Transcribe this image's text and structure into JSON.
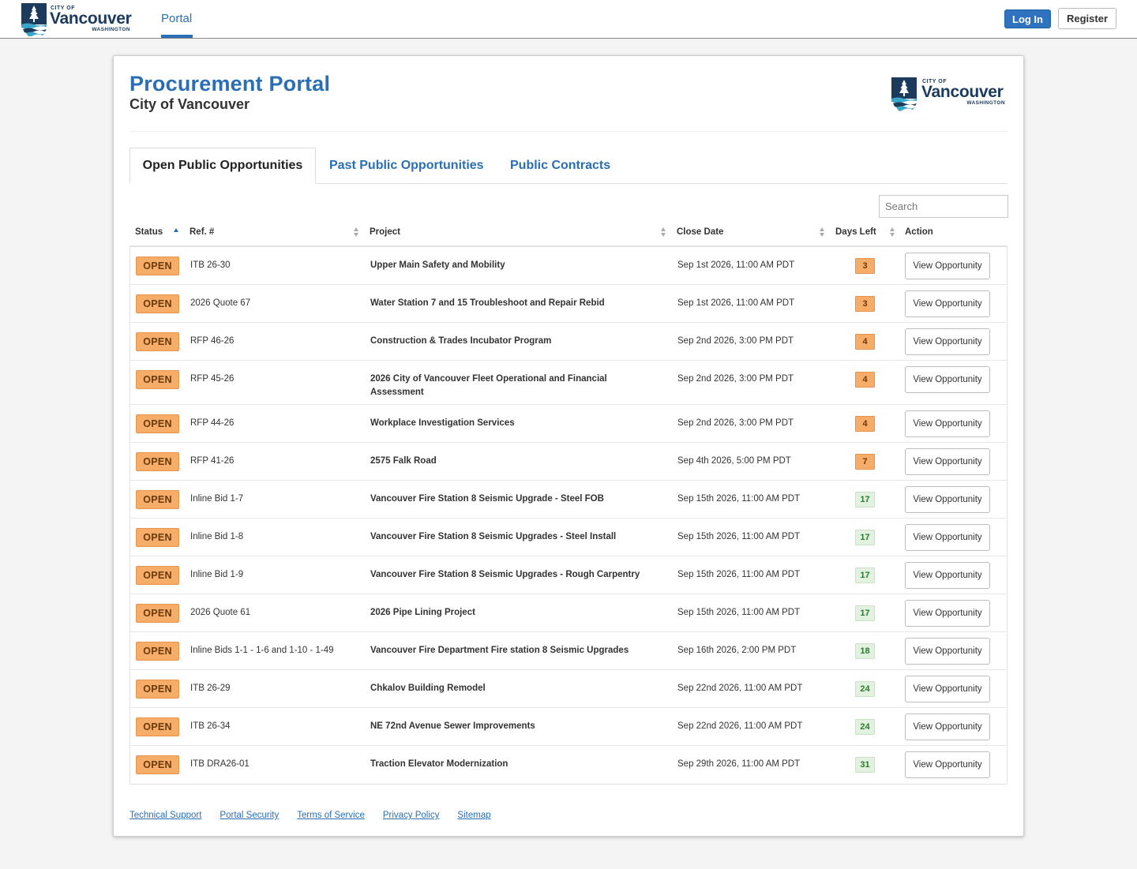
{
  "topbar": {
    "brand": {
      "city_of": "CITY OF",
      "name": "Vancouver",
      "state": "WASHINGTON"
    },
    "nav_portal": "Portal",
    "login_label": "Log In",
    "register_label": "Register"
  },
  "header": {
    "title": "Procurement Portal",
    "subtitle": "City of Vancouver",
    "logo": {
      "city_of": "CITY OF",
      "name": "Vancouver",
      "state": "WASHINGTON"
    }
  },
  "tabs": [
    {
      "label": "Open Public Opportunities",
      "active": true
    },
    {
      "label": "Past Public Opportunities",
      "active": false
    },
    {
      "label": "Public Contracts",
      "active": false
    }
  ],
  "search": {
    "placeholder": "Search"
  },
  "table": {
    "columns": {
      "status": "Status",
      "ref": "Ref. #",
      "project": "Project",
      "close": "Close Date",
      "days": "Days Left",
      "action": "Action"
    },
    "rows": [
      {
        "status": "OPEN",
        "ref": "ITB 26-30",
        "project": "Upper Main Safety and Mobility",
        "close": "Sep 1st 2026, 11:00 AM PDT",
        "days": "3",
        "days_level": "warn",
        "action": "View Opportunity"
      },
      {
        "status": "OPEN",
        "ref": "2026 Quote 67",
        "project": "Water Station 7 and 15 Troubleshoot and Repair Rebid",
        "close": "Sep 1st 2026, 11:00 AM PDT",
        "days": "3",
        "days_level": "warn",
        "action": "View Opportunity"
      },
      {
        "status": "OPEN",
        "ref": "RFP 46-26",
        "project": "Construction & Trades Incubator Program",
        "close": "Sep 2nd 2026, 3:00 PM PDT",
        "days": "4",
        "days_level": "warn",
        "action": "View Opportunity"
      },
      {
        "status": "OPEN",
        "ref": "RFP 45-26",
        "project": "2026 City of Vancouver Fleet Operational and Financial Assessment",
        "close": "Sep 2nd 2026, 3:00 PM PDT",
        "days": "4",
        "days_level": "warn",
        "action": "View Opportunity"
      },
      {
        "status": "OPEN",
        "ref": "RFP 44-26",
        "project": "Workplace Investigation Services",
        "close": "Sep 2nd 2026, 3:00 PM PDT",
        "days": "4",
        "days_level": "warn",
        "action": "View Opportunity"
      },
      {
        "status": "OPEN",
        "ref": "RFP 41-26",
        "project": "2575 Falk Road",
        "close": "Sep 4th 2026, 5:00 PM PDT",
        "days": "7",
        "days_level": "warn",
        "action": "View Opportunity"
      },
      {
        "status": "OPEN",
        "ref": "Inline Bid 1-7",
        "project": "Vancouver Fire Station 8 Seismic Upgrade - Steel FOB",
        "close": "Sep 15th 2026, 11:00 AM PDT",
        "days": "17",
        "days_level": "ok",
        "action": "View Opportunity"
      },
      {
        "status": "OPEN",
        "ref": "Inline Bid 1-8",
        "project": "Vancouver Fire Station 8 Seismic Upgrades - Steel Install",
        "close": "Sep 15th 2026, 11:00 AM PDT",
        "days": "17",
        "days_level": "ok",
        "action": "View Opportunity"
      },
      {
        "status": "OPEN",
        "ref": "Inline Bid 1-9",
        "project": "Vancouver Fire Station 8 Seismic Upgrades - Rough Carpentry",
        "close": "Sep 15th 2026, 11:00 AM PDT",
        "days": "17",
        "days_level": "ok",
        "action": "View Opportunity"
      },
      {
        "status": "OPEN",
        "ref": "2026 Quote 61",
        "project": "2026 Pipe Lining Project",
        "close": "Sep 15th 2026, 11:00 AM PDT",
        "days": "17",
        "days_level": "ok",
        "action": "View Opportunity"
      },
      {
        "status": "OPEN",
        "ref": "Inline Bids 1-1 - 1-6 and 1-10 - 1-49",
        "project": "Vancouver Fire Department Fire station 8 Seismic Upgrades",
        "close": "Sep 16th 2026, 2:00 PM PDT",
        "days": "18",
        "days_level": "ok",
        "action": "View Opportunity"
      },
      {
        "status": "OPEN",
        "ref": "ITB 26-29",
        "project": "Chkalov Building Remodel",
        "close": "Sep 22nd 2026, 11:00 AM PDT",
        "days": "24",
        "days_level": "ok",
        "action": "View Opportunity"
      },
      {
        "status": "OPEN",
        "ref": "ITB 26-34",
        "project": "NE 72nd Avenue Sewer Improvements",
        "close": "Sep 22nd 2026, 11:00 AM PDT",
        "days": "24",
        "days_level": "ok",
        "action": "View Opportunity"
      },
      {
        "status": "OPEN",
        "ref": "ITB DRA26-01",
        "project": "Traction Elevator Modernization",
        "close": "Sep 29th 2026, 11:00 AM PDT",
        "days": "31",
        "days_level": "ok",
        "action": "View Opportunity"
      }
    ]
  },
  "footer": {
    "links": [
      "Technical Support",
      "Portal Security",
      "Terms of Service",
      "Privacy Policy",
      "Sitemap"
    ]
  },
  "colors": {
    "brand_blue": "#2a6fb5",
    "status_orange": "#f7ad6a",
    "days_ok_green": "#e3f1e1",
    "navy": "#1b3a5c"
  }
}
